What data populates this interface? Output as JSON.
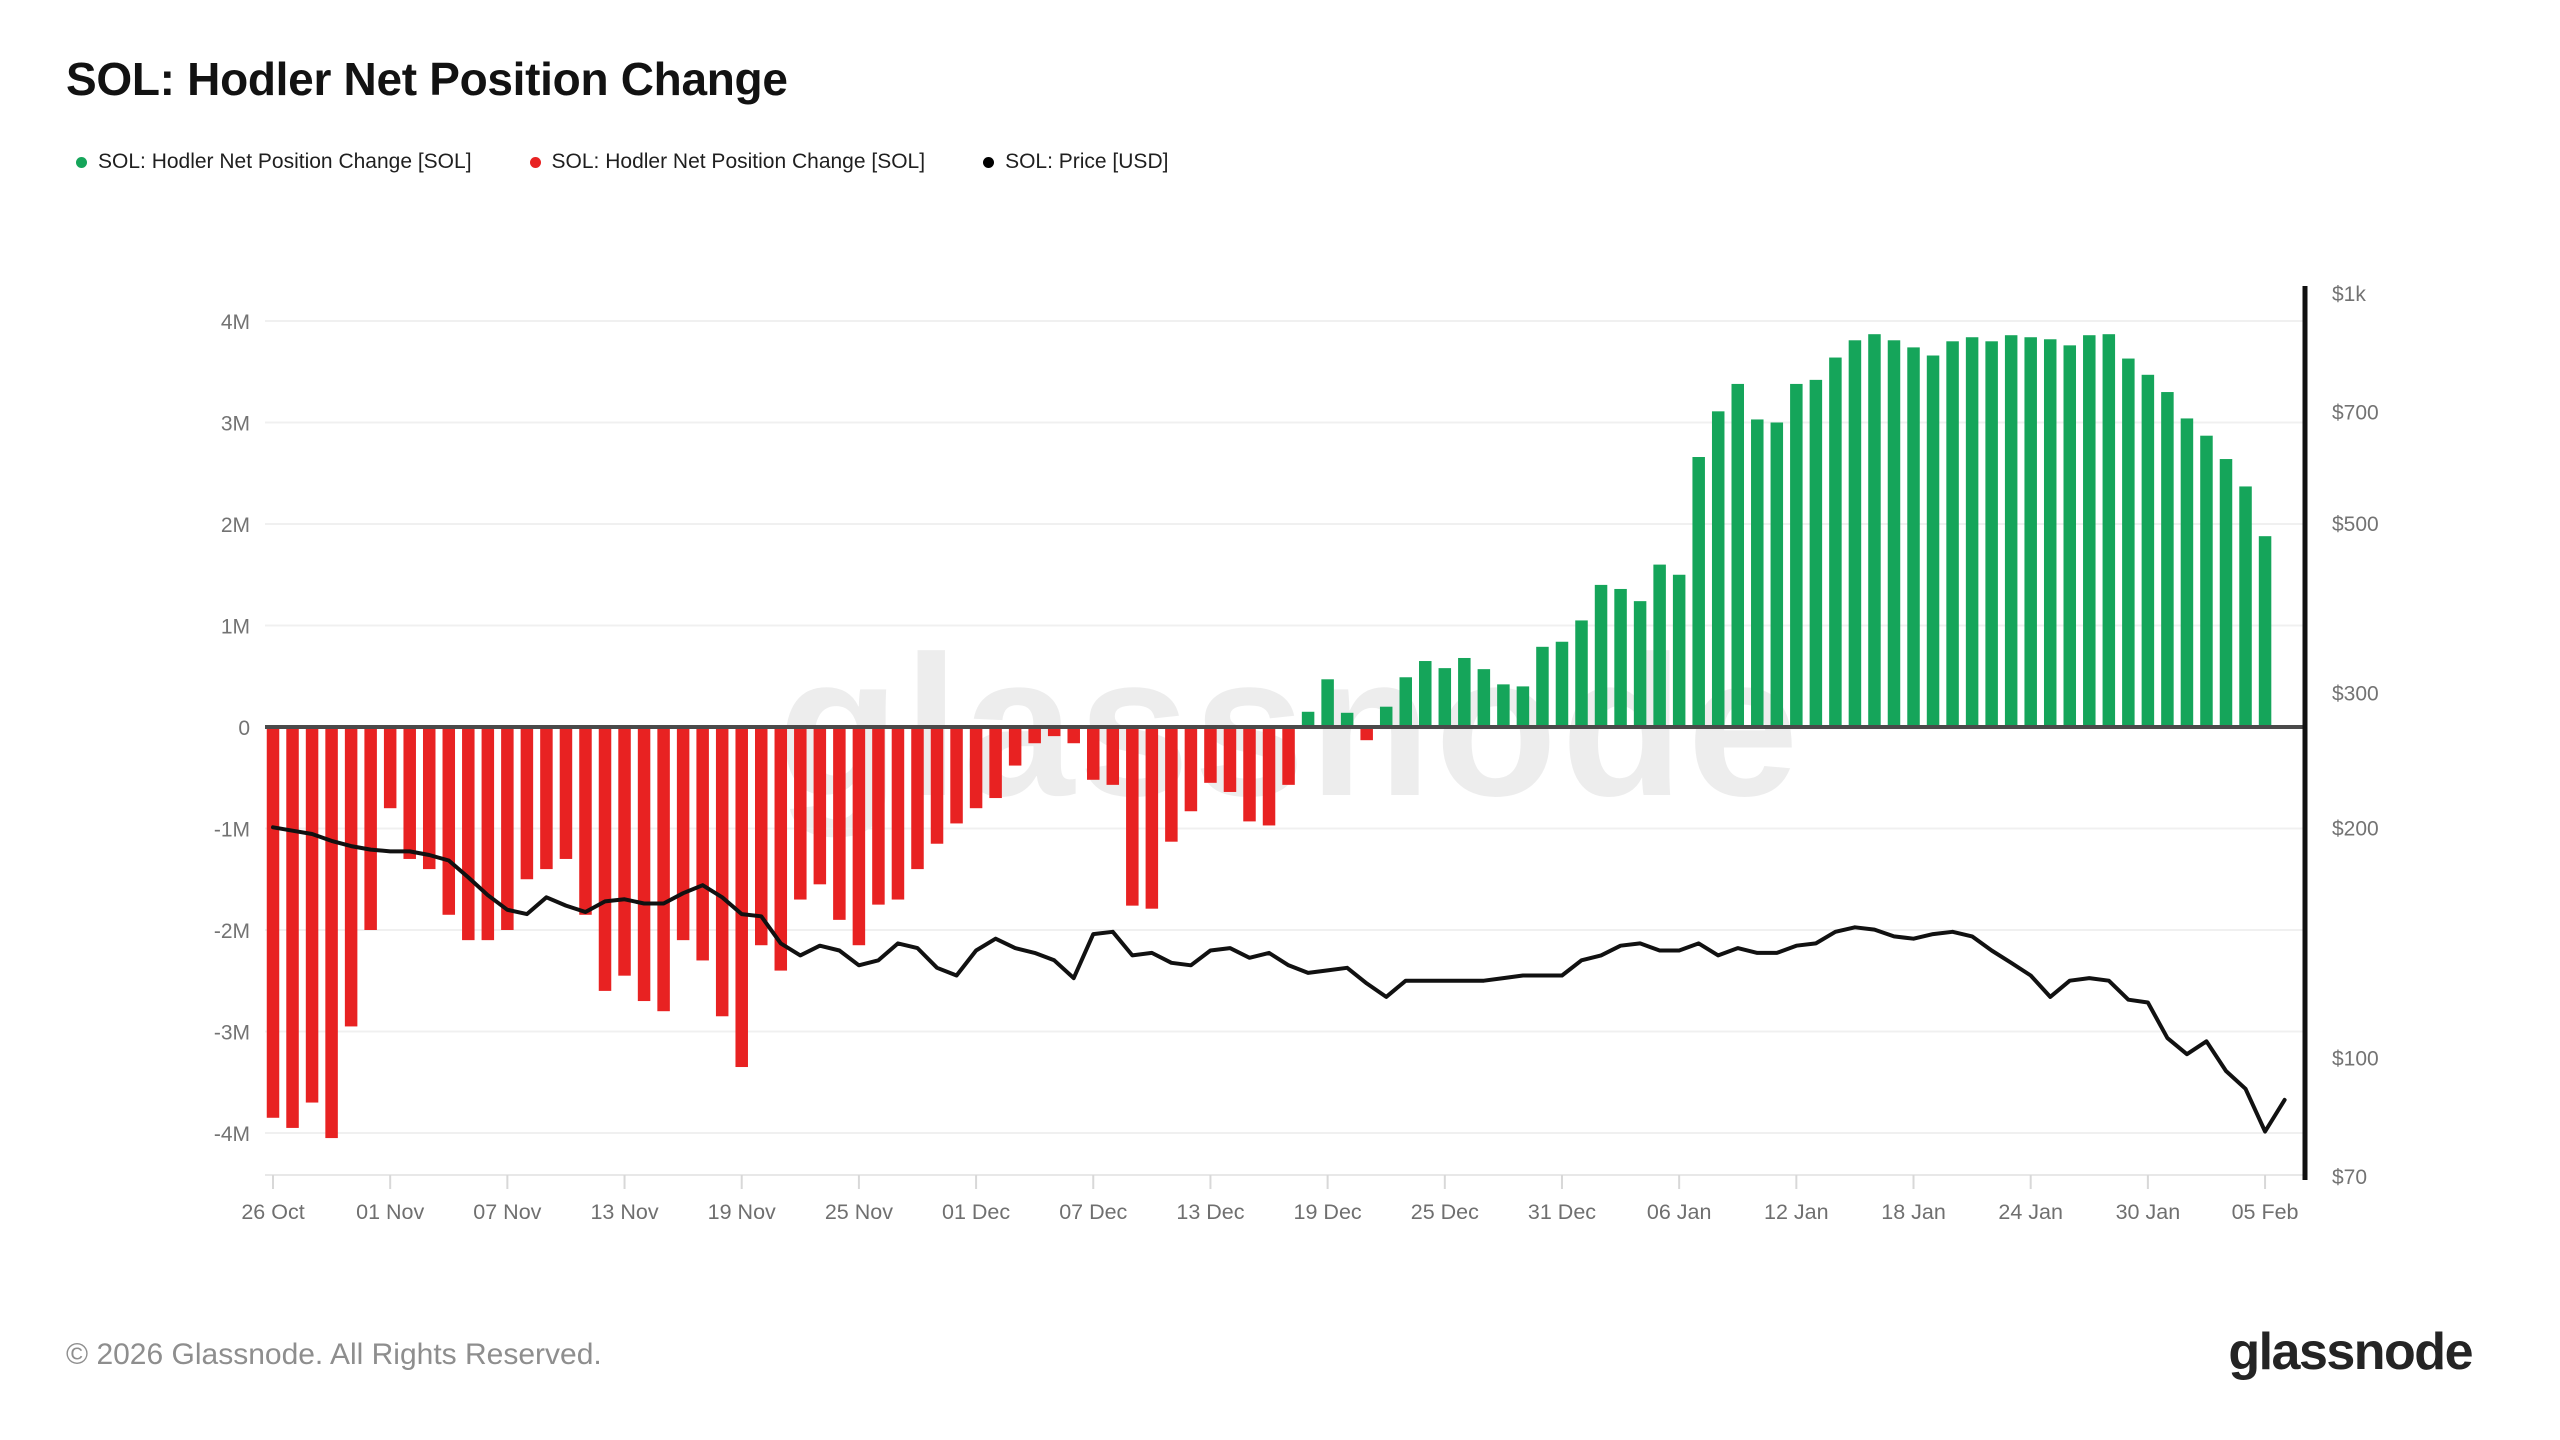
{
  "page": {
    "title": "SOL: Hodler Net Position Change",
    "watermark": "glassnode",
    "footer_copyright": "© 2026 Glassnode. All Rights Reserved.",
    "brand_wordmark": "glassnode"
  },
  "legend": [
    {
      "label": "SOL: Hodler Net Position Change [SOL]",
      "color": "#15a55a"
    },
    {
      "label": "SOL: Hodler Net Position Change [SOL]",
      "color": "#e82222"
    },
    {
      "label": "SOL: Price [USD]",
      "color": "#000000"
    }
  ],
  "chart_data": {
    "type": "bar+line",
    "title": "SOL: Hodler Net Position Change",
    "grid": "horizontal",
    "left_axis": {
      "ticks": [
        "4M",
        "3M",
        "2M",
        "1M",
        "0",
        "-1M",
        "-2M",
        "-3M",
        "-4M"
      ],
      "tick_values": [
        4,
        3,
        2,
        1,
        0,
        -1,
        -2,
        -3,
        -4
      ],
      "ylim": [
        -4.5,
        4.5
      ],
      "unit": "SOL"
    },
    "right_axis": {
      "scale": "log",
      "lim": [
        70,
        1000
      ],
      "unit": "USD",
      "ticks": [
        {
          "label": "$1k",
          "value": 1000
        },
        {
          "label": "$700",
          "value": 700
        },
        {
          "label": "$500",
          "value": 500
        },
        {
          "label": "$300",
          "value": 300
        },
        {
          "label": "$200",
          "value": 200
        },
        {
          "label": "$100",
          "value": 100
        },
        {
          "label": "$70",
          "value": 70
        }
      ]
    },
    "x_tick_labels": [
      "26 Oct",
      "01 Nov",
      "07 Nov",
      "13 Nov",
      "19 Nov",
      "25 Nov",
      "01 Dec",
      "07 Dec",
      "13 Dec",
      "19 Dec",
      "25 Dec",
      "31 Dec",
      "06 Jan",
      "12 Jan",
      "18 Jan",
      "24 Jan",
      "30 Jan",
      "05 Feb"
    ],
    "x_tick_indices": [
      0,
      6,
      12,
      18,
      24,
      30,
      36,
      42,
      48,
      54,
      60,
      66,
      72,
      78,
      84,
      90,
      96,
      102
    ],
    "bars": {
      "name": "SOL: Hodler Net Position Change [SOL]",
      "unit": "millions of SOL",
      "positive_color": "#15a55a",
      "negative_color": "#e82222",
      "dates": [
        "26 Oct",
        "27 Oct",
        "28 Oct",
        "29 Oct",
        "30 Oct",
        "31 Oct",
        "01 Nov",
        "02 Nov",
        "03 Nov",
        "04 Nov",
        "05 Nov",
        "06 Nov",
        "07 Nov",
        "08 Nov",
        "09 Nov",
        "10 Nov",
        "11 Nov",
        "12 Nov",
        "13 Nov",
        "14 Nov",
        "15 Nov",
        "16 Nov",
        "17 Nov",
        "18 Nov",
        "19 Nov",
        "20 Nov",
        "21 Nov",
        "22 Nov",
        "23 Nov",
        "24 Nov",
        "25 Nov",
        "26 Nov",
        "27 Nov",
        "28 Nov",
        "29 Nov",
        "30 Nov",
        "01 Dec",
        "02 Dec",
        "03 Dec",
        "04 Dec",
        "05 Dec",
        "06 Dec",
        "07 Dec",
        "08 Dec",
        "09 Dec",
        "10 Dec",
        "11 Dec",
        "12 Dec",
        "13 Dec",
        "14 Dec",
        "15 Dec",
        "16 Dec",
        "17 Dec",
        "18 Dec",
        "19 Dec",
        "20 Dec",
        "21 Dec",
        "22 Dec",
        "23 Dec",
        "24 Dec",
        "25 Dec",
        "26 Dec",
        "27 Dec",
        "28 Dec",
        "29 Dec",
        "30 Dec",
        "31 Dec",
        "01 Jan",
        "02 Jan",
        "03 Jan",
        "04 Jan",
        "05 Jan",
        "06 Jan",
        "07 Jan",
        "08 Jan",
        "09 Jan",
        "10 Jan",
        "11 Jan",
        "12 Jan",
        "13 Jan",
        "14 Jan",
        "15 Jan",
        "16 Jan",
        "17 Jan",
        "18 Jan",
        "19 Jan",
        "20 Jan",
        "21 Jan",
        "22 Jan",
        "23 Jan",
        "24 Jan",
        "25 Jan",
        "26 Jan",
        "27 Jan",
        "28 Jan",
        "29 Jan",
        "30 Jan",
        "31 Jan",
        "01 Feb",
        "02 Feb",
        "03 Feb",
        "04 Feb",
        "05 Feb"
      ],
      "values": [
        -3.85,
        -3.95,
        -3.7,
        -4.05,
        -2.95,
        -2.0,
        -0.8,
        -1.3,
        -1.4,
        -1.85,
        -2.1,
        -2.1,
        -2.0,
        -1.5,
        -1.4,
        -1.3,
        -1.85,
        -2.6,
        -2.45,
        -2.7,
        -2.8,
        -2.1,
        -2.3,
        -2.85,
        -3.35,
        -2.15,
        -2.4,
        -1.7,
        -1.55,
        -1.9,
        -2.15,
        -1.75,
        -1.7,
        -1.4,
        -1.15,
        -0.95,
        -0.8,
        -0.7,
        -0.38,
        -0.16,
        -0.09,
        -0.16,
        -0.52,
        -0.57,
        -1.76,
        -1.79,
        -1.13,
        -0.83,
        -0.55,
        -0.64,
        -0.93,
        -0.97,
        -0.57,
        0.15,
        0.47,
        0.14,
        -0.13,
        0.2,
        0.49,
        0.65,
        0.58,
        0.68,
        0.57,
        0.42,
        0.4,
        0.79,
        0.84,
        1.05,
        1.4,
        1.36,
        1.24,
        1.6,
        1.5,
        2.66,
        3.11,
        3.38,
        3.03,
        3.0,
        3.38,
        3.42,
        3.64,
        3.81,
        3.87,
        3.81,
        3.74,
        3.66,
        3.8,
        3.84,
        3.8,
        3.86,
        3.84,
        3.82,
        3.76,
        3.86,
        3.87,
        3.63,
        3.47,
        3.3,
        3.04,
        2.87,
        2.64,
        2.37,
        1.88
      ]
    },
    "price": {
      "name": "SOL: Price [USD]",
      "unit": "USD",
      "color": "#111111",
      "dates": [
        "26 Oct",
        "27 Oct",
        "28 Oct",
        "29 Oct",
        "30 Oct",
        "31 Oct",
        "01 Nov",
        "02 Nov",
        "03 Nov",
        "04 Nov",
        "05 Nov",
        "06 Nov",
        "07 Nov",
        "08 Nov",
        "09 Nov",
        "10 Nov",
        "11 Nov",
        "12 Nov",
        "13 Nov",
        "14 Nov",
        "15 Nov",
        "16 Nov",
        "17 Nov",
        "18 Nov",
        "19 Nov",
        "20 Nov",
        "21 Nov",
        "22 Nov",
        "23 Nov",
        "24 Nov",
        "25 Nov",
        "26 Nov",
        "27 Nov",
        "28 Nov",
        "29 Nov",
        "30 Nov",
        "01 Dec",
        "02 Dec",
        "03 Dec",
        "04 Dec",
        "05 Dec",
        "06 Dec",
        "07 Dec",
        "08 Dec",
        "09 Dec",
        "10 Dec",
        "11 Dec",
        "12 Dec",
        "13 Dec",
        "14 Dec",
        "15 Dec",
        "16 Dec",
        "17 Dec",
        "18 Dec",
        "19 Dec",
        "20 Dec",
        "21 Dec",
        "22 Dec",
        "23 Dec",
        "24 Dec",
        "25 Dec",
        "26 Dec",
        "27 Dec",
        "28 Dec",
        "29 Dec",
        "30 Dec",
        "31 Dec",
        "01 Jan",
        "02 Jan",
        "03 Jan",
        "04 Jan",
        "05 Jan",
        "06 Jan",
        "07 Jan",
        "08 Jan",
        "09 Jan",
        "10 Jan",
        "11 Jan",
        "12 Jan",
        "13 Jan",
        "14 Jan",
        "15 Jan",
        "16 Jan",
        "17 Jan",
        "18 Jan",
        "19 Jan",
        "20 Jan",
        "21 Jan",
        "22 Jan",
        "23 Jan",
        "24 Jan",
        "25 Jan",
        "26 Jan",
        "27 Jan",
        "28 Jan",
        "29 Jan",
        "30 Jan",
        "31 Jan",
        "01 Feb",
        "02 Feb",
        "03 Feb",
        "04 Feb",
        "05 Feb",
        "06 Feb"
      ],
      "values": [
        200,
        198,
        196,
        192,
        189,
        187,
        186,
        186,
        184,
        181,
        172,
        163,
        156,
        154,
        162,
        158,
        155,
        160,
        161,
        159,
        159,
        164,
        168,
        162,
        154,
        153,
        141,
        136,
        140,
        138,
        132,
        134,
        141,
        139,
        131,
        128,
        138,
        143,
        139,
        137,
        134,
        127,
        145,
        146,
        136,
        137,
        133,
        132,
        138,
        139,
        135,
        137,
        132,
        129,
        130,
        131,
        125,
        120,
        126,
        126,
        126,
        126,
        126,
        127,
        128,
        128,
        128,
        134,
        136,
        140,
        141,
        138,
        138,
        141,
        136,
        139,
        137,
        137,
        140,
        141,
        146,
        148,
        147,
        144,
        143,
        145,
        146,
        144,
        138,
        133,
        128,
        120,
        126,
        127,
        126,
        119,
        118,
        106,
        101,
        105,
        96,
        91,
        80,
        88
      ]
    },
    "zero_line_color": "#4a4a4a",
    "gridline_color": "#f0f0f0"
  }
}
